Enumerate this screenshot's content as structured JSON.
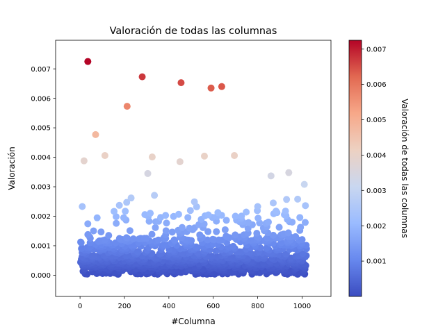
{
  "chart_data": {
    "type": "scatter",
    "title": "Valoración de todas las columnas",
    "xlabel": "#Columna",
    "ylabel": "Valoración",
    "xlim": [
      -110,
      1130
    ],
    "ylim": [
      -0.00072,
      0.00797
    ],
    "xticks": [
      0,
      200,
      400,
      600,
      800,
      1000
    ],
    "yticks": [
      0.0,
      0.001,
      0.002,
      0.003,
      0.004,
      0.005,
      0.006,
      0.007
    ],
    "ytick_labels": [
      "0.000",
      "0.001",
      "0.002",
      "0.003",
      "0.004",
      "0.005",
      "0.006",
      "0.007"
    ],
    "grid": false,
    "colormap": "coolwarm",
    "colormap_stops": [
      "#3b4cc0",
      "#6788ee",
      "#9abbff",
      "#c9d7f0",
      "#edd1c2",
      "#f7a889",
      "#e26952",
      "#b40426"
    ],
    "colorbar": {
      "label": "Valoración de todas las columnas",
      "min": 0.0,
      "max": 0.00725,
      "ticks": [
        0.001,
        0.002,
        0.003,
        0.004,
        0.005,
        0.006,
        0.007
      ],
      "tick_labels": [
        "0.001",
        "0.002",
        "0.003",
        "0.004",
        "0.005",
        "0.006",
        "0.007"
      ]
    },
    "n_points": 1024,
    "notable_points": [
      {
        "x": 35,
        "y": 0.00725
      },
      {
        "x": 280,
        "y": 0.00673
      },
      {
        "x": 455,
        "y": 0.00653
      },
      {
        "x": 590,
        "y": 0.00635
      },
      {
        "x": 638,
        "y": 0.0064
      },
      {
        "x": 212,
        "y": 0.00573
      },
      {
        "x": 70,
        "y": 0.00477
      },
      {
        "x": 18,
        "y": 0.00388
      },
      {
        "x": 112,
        "y": 0.00406
      },
      {
        "x": 325,
        "y": 0.00401
      },
      {
        "x": 450,
        "y": 0.00385
      },
      {
        "x": 560,
        "y": 0.00404
      },
      {
        "x": 695,
        "y": 0.00406
      },
      {
        "x": 305,
        "y": 0.00345
      },
      {
        "x": 860,
        "y": 0.00337
      },
      {
        "x": 940,
        "y": 0.00348
      },
      {
        "x": 1010,
        "y": 0.00308
      },
      {
        "x": 335,
        "y": 0.00271
      },
      {
        "x": 230,
        "y": 0.00262
      },
      {
        "x": 515,
        "y": 0.00249
      },
      {
        "x": 980,
        "y": 0.00258
      },
      {
        "x": 930,
        "y": 0.00257
      },
      {
        "x": 10,
        "y": 0.00233
      },
      {
        "x": 525,
        "y": 0.00232
      },
      {
        "x": 800,
        "y": 0.00233
      },
      {
        "x": 870,
        "y": 0.00245
      },
      {
        "x": 1015,
        "y": 0.00236
      },
      {
        "x": 177,
        "y": 0.00237
      },
      {
        "x": 210,
        "y": 0.00247
      }
    ]
  }
}
